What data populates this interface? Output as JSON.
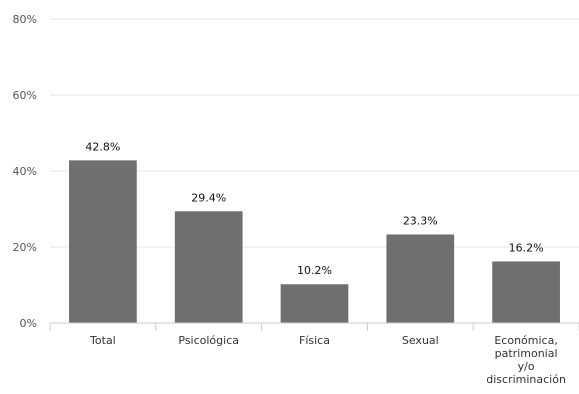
{
  "chart_data": {
    "type": "bar",
    "categories": [
      [
        "Total"
      ],
      [
        "Psicológica"
      ],
      [
        "Física"
      ],
      [
        "Sexual"
      ],
      [
        "Económica,",
        "patrimonial",
        "y/o",
        "discriminación"
      ]
    ],
    "values": [
      42.8,
      29.4,
      10.2,
      23.3,
      16.2
    ],
    "value_labels": [
      "42.8%",
      "29.4%",
      "10.2%",
      "23.3%",
      "16.2%"
    ],
    "title": "",
    "xlabel": "",
    "ylabel": "",
    "ylim": [
      0,
      80
    ],
    "yticks": [
      0,
      20,
      40,
      60,
      80
    ],
    "ytick_labels": [
      "0%",
      "20%",
      "40%",
      "60%",
      "80%"
    ],
    "grid": true,
    "legend": "none",
    "colors": {
      "bar": "#6f6f6f",
      "grid": "#e6e6e6",
      "axis": "#cccccc"
    }
  }
}
